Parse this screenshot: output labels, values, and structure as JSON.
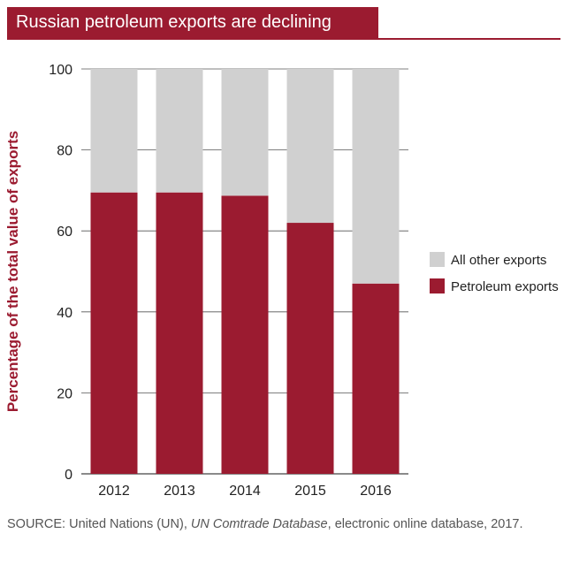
{
  "title": "Russian petroleum exports are declining",
  "source": {
    "prefix": "SOURCE: United Nations (UN), ",
    "italic": "UN Comtrade Database",
    "suffix": ", electronic online database, 2017."
  },
  "colors": {
    "petroleum": "#9b1b30",
    "other": "#d0d0d0",
    "accent": "#9b1b30"
  },
  "chart_data": {
    "type": "bar",
    "stacked": true,
    "categories": [
      "2012",
      "2013",
      "2014",
      "2015",
      "2016"
    ],
    "series": [
      {
        "name": "Petroleum exports",
        "values": [
          69.5,
          69.5,
          68.7,
          62.0,
          47.0
        ]
      },
      {
        "name": "All other exports",
        "values": [
          30.5,
          30.5,
          31.3,
          38.0,
          53.0
        ]
      }
    ],
    "ylabel": "Percentage of the total value of exports",
    "ylim": [
      0,
      100
    ],
    "yticks": [
      0,
      20,
      40,
      60,
      80,
      100
    ],
    "grid": true,
    "legend": [
      "All other exports",
      "Petroleum exports"
    ],
    "legend_position": "right"
  }
}
